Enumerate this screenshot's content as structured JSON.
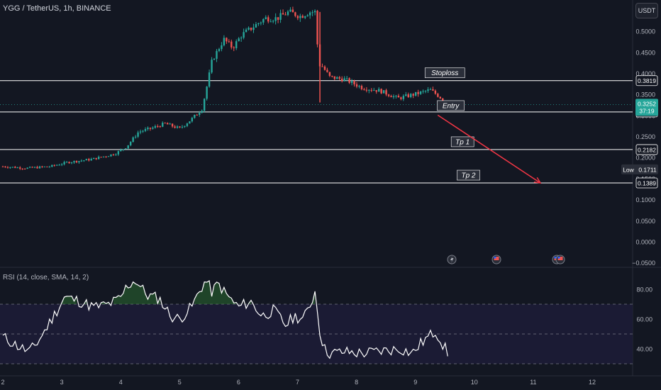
{
  "header": {
    "symbol_text": "YGG / TetherUS, 1h, BINANCE"
  },
  "rsi_header": "RSI (14, close, SMA, 14, 2)",
  "currency_button": "USDT",
  "colors": {
    "up": "#26a69a",
    "down": "#ef5350",
    "bg": "#131722",
    "rsi_line": "#ffffff",
    "rsi_band": "#1b1b34",
    "arrow": "#f23645",
    "label_box": "#2a2e39"
  },
  "chart_data": {
    "type": "candlestick",
    "title": "YGG / TetherUS, 1h, BINANCE",
    "ylim": [
      -0.05,
      0.545
    ],
    "x_ticks": [
      "2",
      "3",
      "4",
      "5",
      "6",
      "7",
      "8",
      "9",
      "10",
      "11",
      "12"
    ],
    "y_ticks": [
      "0.5000",
      "0.4500",
      "0.4000",
      "0.3500",
      "0.3000",
      "0.2500",
      "0.2000",
      "0.1500",
      "0.1000",
      "0.0500",
      "0.0000",
      "−0.0500"
    ],
    "price_path": [
      {
        "day": 2.0,
        "price": 0.178
      },
      {
        "day": 2.4,
        "price": 0.174
      },
      {
        "day": 2.8,
        "price": 0.178
      },
      {
        "day": 3.1,
        "price": 0.188
      },
      {
        "day": 3.5,
        "price": 0.195
      },
      {
        "day": 3.9,
        "price": 0.208
      },
      {
        "day": 4.1,
        "price": 0.225
      },
      {
        "day": 4.3,
        "price": 0.26
      },
      {
        "day": 4.55,
        "price": 0.27
      },
      {
        "day": 4.75,
        "price": 0.28
      },
      {
        "day": 5.0,
        "price": 0.268
      },
      {
        "day": 5.2,
        "price": 0.29
      },
      {
        "day": 5.38,
        "price": 0.315
      },
      {
        "day": 5.45,
        "price": 0.36
      },
      {
        "day": 5.55,
        "price": 0.43
      },
      {
        "day": 5.75,
        "price": 0.48
      },
      {
        "day": 5.9,
        "price": 0.46
      },
      {
        "day": 6.05,
        "price": 0.49
      },
      {
        "day": 6.25,
        "price": 0.51
      },
      {
        "day": 6.45,
        "price": 0.53
      },
      {
        "day": 6.65,
        "price": 0.53
      },
      {
        "day": 6.85,
        "price": 0.545
      },
      {
        "day": 7.05,
        "price": 0.535
      },
      {
        "day": 7.2,
        "price": 0.545
      },
      {
        "day": 7.3,
        "price": 0.545
      },
      {
        "day": 7.4,
        "price": 0.42
      },
      {
        "day": 7.55,
        "price": 0.39
      },
      {
        "day": 7.8,
        "price": 0.385
      },
      {
        "day": 8.1,
        "price": 0.365
      },
      {
        "day": 8.4,
        "price": 0.358
      },
      {
        "day": 8.7,
        "price": 0.34
      },
      {
        "day": 9.0,
        "price": 0.35
      },
      {
        "day": 9.25,
        "price": 0.36
      },
      {
        "day": 9.4,
        "price": 0.345
      },
      {
        "day": 9.55,
        "price": 0.325
      }
    ],
    "horizontal_lines": [
      {
        "value": 0.3819,
        "tag": "0.3819",
        "label": "Stoploss",
        "label_day": 9.5
      },
      {
        "value": 0.3075,
        "tag": "0.3075",
        "label": "Entry",
        "label_day": 9.6
      },
      {
        "value": 0.2182,
        "tag": "0.2182",
        "label": "Tp 1",
        "label_day": 9.8
      },
      {
        "value": 0.1389,
        "tag": "0.1389",
        "label": "Tp 2",
        "label_day": 9.9
      }
    ],
    "arrow": {
      "from_day": 9.38,
      "from_price": 0.3,
      "to_day": 11.12,
      "to_price": 0.139
    },
    "current_price": {
      "value": 0.3252,
      "tag": "0.3252",
      "countdown": "37:19"
    },
    "low_marker": {
      "value": 0.1711,
      "label": "Low",
      "tag": "0.1711"
    },
    "rsi": {
      "ylim": [
        30,
        88
      ],
      "ticks": [
        "80.00",
        "60.00",
        "40.00"
      ],
      "band": [
        30,
        70
      ],
      "midline": 50,
      "path": [
        {
          "day": 2.0,
          "v": 48
        },
        {
          "day": 2.25,
          "v": 42
        },
        {
          "day": 2.45,
          "v": 38
        },
        {
          "day": 2.6,
          "v": 45
        },
        {
          "day": 2.8,
          "v": 58
        },
        {
          "day": 2.95,
          "v": 68
        },
        {
          "day": 3.05,
          "v": 75
        },
        {
          "day": 3.3,
          "v": 72
        },
        {
          "day": 3.55,
          "v": 68
        },
        {
          "day": 3.8,
          "v": 70
        },
        {
          "day": 4.0,
          "v": 74
        },
        {
          "day": 4.1,
          "v": 82
        },
        {
          "day": 4.25,
          "v": 86
        },
        {
          "day": 4.45,
          "v": 76
        },
        {
          "day": 4.65,
          "v": 74
        },
        {
          "day": 4.85,
          "v": 62
        },
        {
          "day": 5.0,
          "v": 60
        },
        {
          "day": 5.2,
          "v": 68
        },
        {
          "day": 5.38,
          "v": 82
        },
        {
          "day": 5.45,
          "v": 86
        },
        {
          "day": 5.55,
          "v": 78
        },
        {
          "day": 5.65,
          "v": 84
        },
        {
          "day": 5.8,
          "v": 76
        },
        {
          "day": 6.0,
          "v": 68
        },
        {
          "day": 6.2,
          "v": 72
        },
        {
          "day": 6.4,
          "v": 62
        },
        {
          "day": 6.6,
          "v": 66
        },
        {
          "day": 6.8,
          "v": 56
        },
        {
          "day": 6.95,
          "v": 62
        },
        {
          "day": 7.1,
          "v": 60
        },
        {
          "day": 7.2,
          "v": 68
        },
        {
          "day": 7.3,
          "v": 79
        },
        {
          "day": 7.38,
          "v": 52
        },
        {
          "day": 7.45,
          "v": 40
        },
        {
          "day": 7.55,
          "v": 37
        },
        {
          "day": 7.8,
          "v": 38
        },
        {
          "day": 8.1,
          "v": 37
        },
        {
          "day": 8.3,
          "v": 38
        },
        {
          "day": 8.5,
          "v": 39
        },
        {
          "day": 8.75,
          "v": 40
        },
        {
          "day": 8.95,
          "v": 37
        },
        {
          "day": 9.1,
          "v": 44
        },
        {
          "day": 9.25,
          "v": 49
        },
        {
          "day": 9.35,
          "v": 52
        },
        {
          "day": 9.45,
          "v": 44
        },
        {
          "day": 9.55,
          "v": 37
        }
      ]
    }
  }
}
